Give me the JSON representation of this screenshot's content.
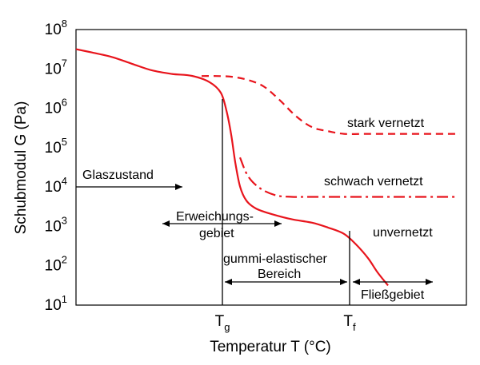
{
  "chart_data": {
    "type": "line",
    "xlabel": "Temperatur T (°C)",
    "ylabel": "Schubmodul G (Pa)",
    "y_scale": "log",
    "ylim_exponent": [
      1,
      8
    ],
    "y_ticks": [
      {
        "base": "10",
        "exp": "1"
      },
      {
        "base": "10",
        "exp": "2"
      },
      {
        "base": "10",
        "exp": "3"
      },
      {
        "base": "10",
        "exp": "4"
      },
      {
        "base": "10",
        "exp": "5"
      },
      {
        "base": "10",
        "exp": "6"
      },
      {
        "base": "10",
        "exp": "7"
      },
      {
        "base": "10",
        "exp": "8"
      }
    ],
    "x_ticks": [
      {
        "symbol": "T",
        "sub": "g"
      },
      {
        "symbol": "T",
        "sub": "f"
      }
    ],
    "series": [
      {
        "name": "unvernetzt",
        "style": "solid",
        "color": "#e8141c",
        "log10_G": [
          7.5,
          7.4,
          7.25,
          7.0,
          6.88,
          6.82,
          6.62,
          6.25,
          5.55,
          4.7,
          3.95,
          3.55,
          3.38,
          3.2,
          3.1,
          2.95,
          2.75,
          2.35,
          1.9,
          1.5
        ]
      },
      {
        "name": "schwach vernetzt",
        "style": "dashdot",
        "color": "#e8141c",
        "log10_G": [
          4.75,
          4.3,
          4.0,
          3.8,
          3.75,
          3.75,
          3.75,
          3.75,
          3.75,
          3.75,
          3.75,
          3.75,
          3.75,
          3.75,
          3.75
        ]
      },
      {
        "name": "stark vernetzt",
        "style": "dashed",
        "color": "#e8141c",
        "log10_G": [
          6.82,
          6.82,
          6.8,
          6.72,
          6.55,
          6.2,
          5.8,
          5.52,
          5.42,
          5.35,
          5.35,
          5.35,
          5.35,
          5.35
        ]
      }
    ],
    "annotations": {
      "glaszustand": "Glaszustand",
      "erweichung_1": "Erweichungs-",
      "erweichung_2": "gebiet",
      "gummi_1": "gummi-elastischer",
      "gummi_2": "Bereich",
      "fliess": "Fließgebiet"
    },
    "grid": false
  }
}
